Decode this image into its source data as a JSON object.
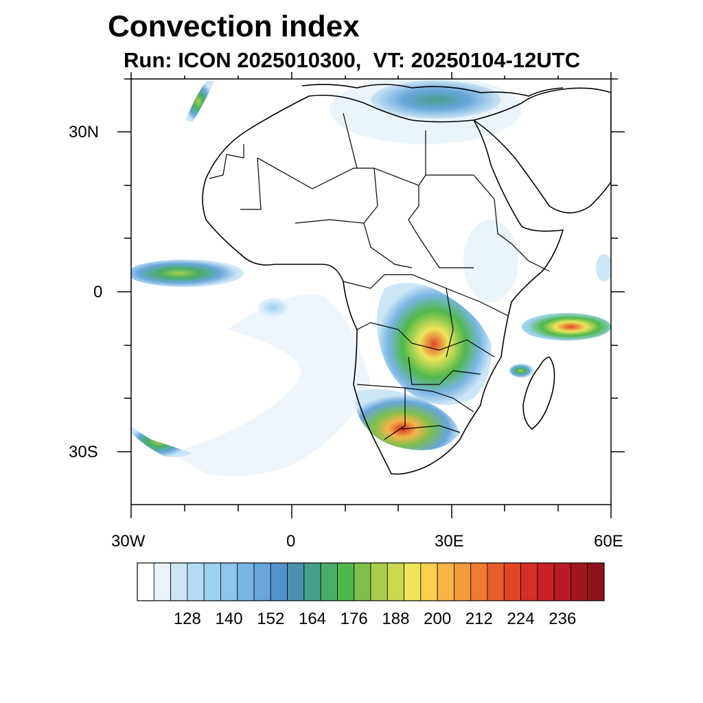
{
  "title": "Convection index",
  "subtitle": "Run: ICON 2025010300,  VT: 20250104-12UTC",
  "map": {
    "lat_labels": [
      "30N",
      "0",
      "30S"
    ],
    "lon_labels": [
      "30W",
      "0",
      "30E",
      "60E"
    ],
    "lon_range": [
      -30,
      60
    ],
    "lat_range": [
      -40,
      40
    ]
  },
  "colorbar": {
    "labels": [
      "128",
      "140",
      "152",
      "164",
      "176",
      "188",
      "200",
      "212",
      "224",
      "236"
    ],
    "colors": [
      "#ffffff",
      "#e8f4fb",
      "#cce6f5",
      "#b3dcf3",
      "#9dd2f0",
      "#8ec5ec",
      "#78b5e3",
      "#68a6db",
      "#5393cc",
      "#4a92ad",
      "#469f8a",
      "#48ad66",
      "#4fb84b",
      "#7dc04e",
      "#a9ce4e",
      "#ccd94f",
      "#eee55a",
      "#f8cf51",
      "#f6b448",
      "#f39a3c",
      "#ee7b30",
      "#e85e2a",
      "#e24426",
      "#d52f27",
      "#c82026",
      "#b81b25",
      "#a4161e",
      "#8f141a"
    ]
  }
}
